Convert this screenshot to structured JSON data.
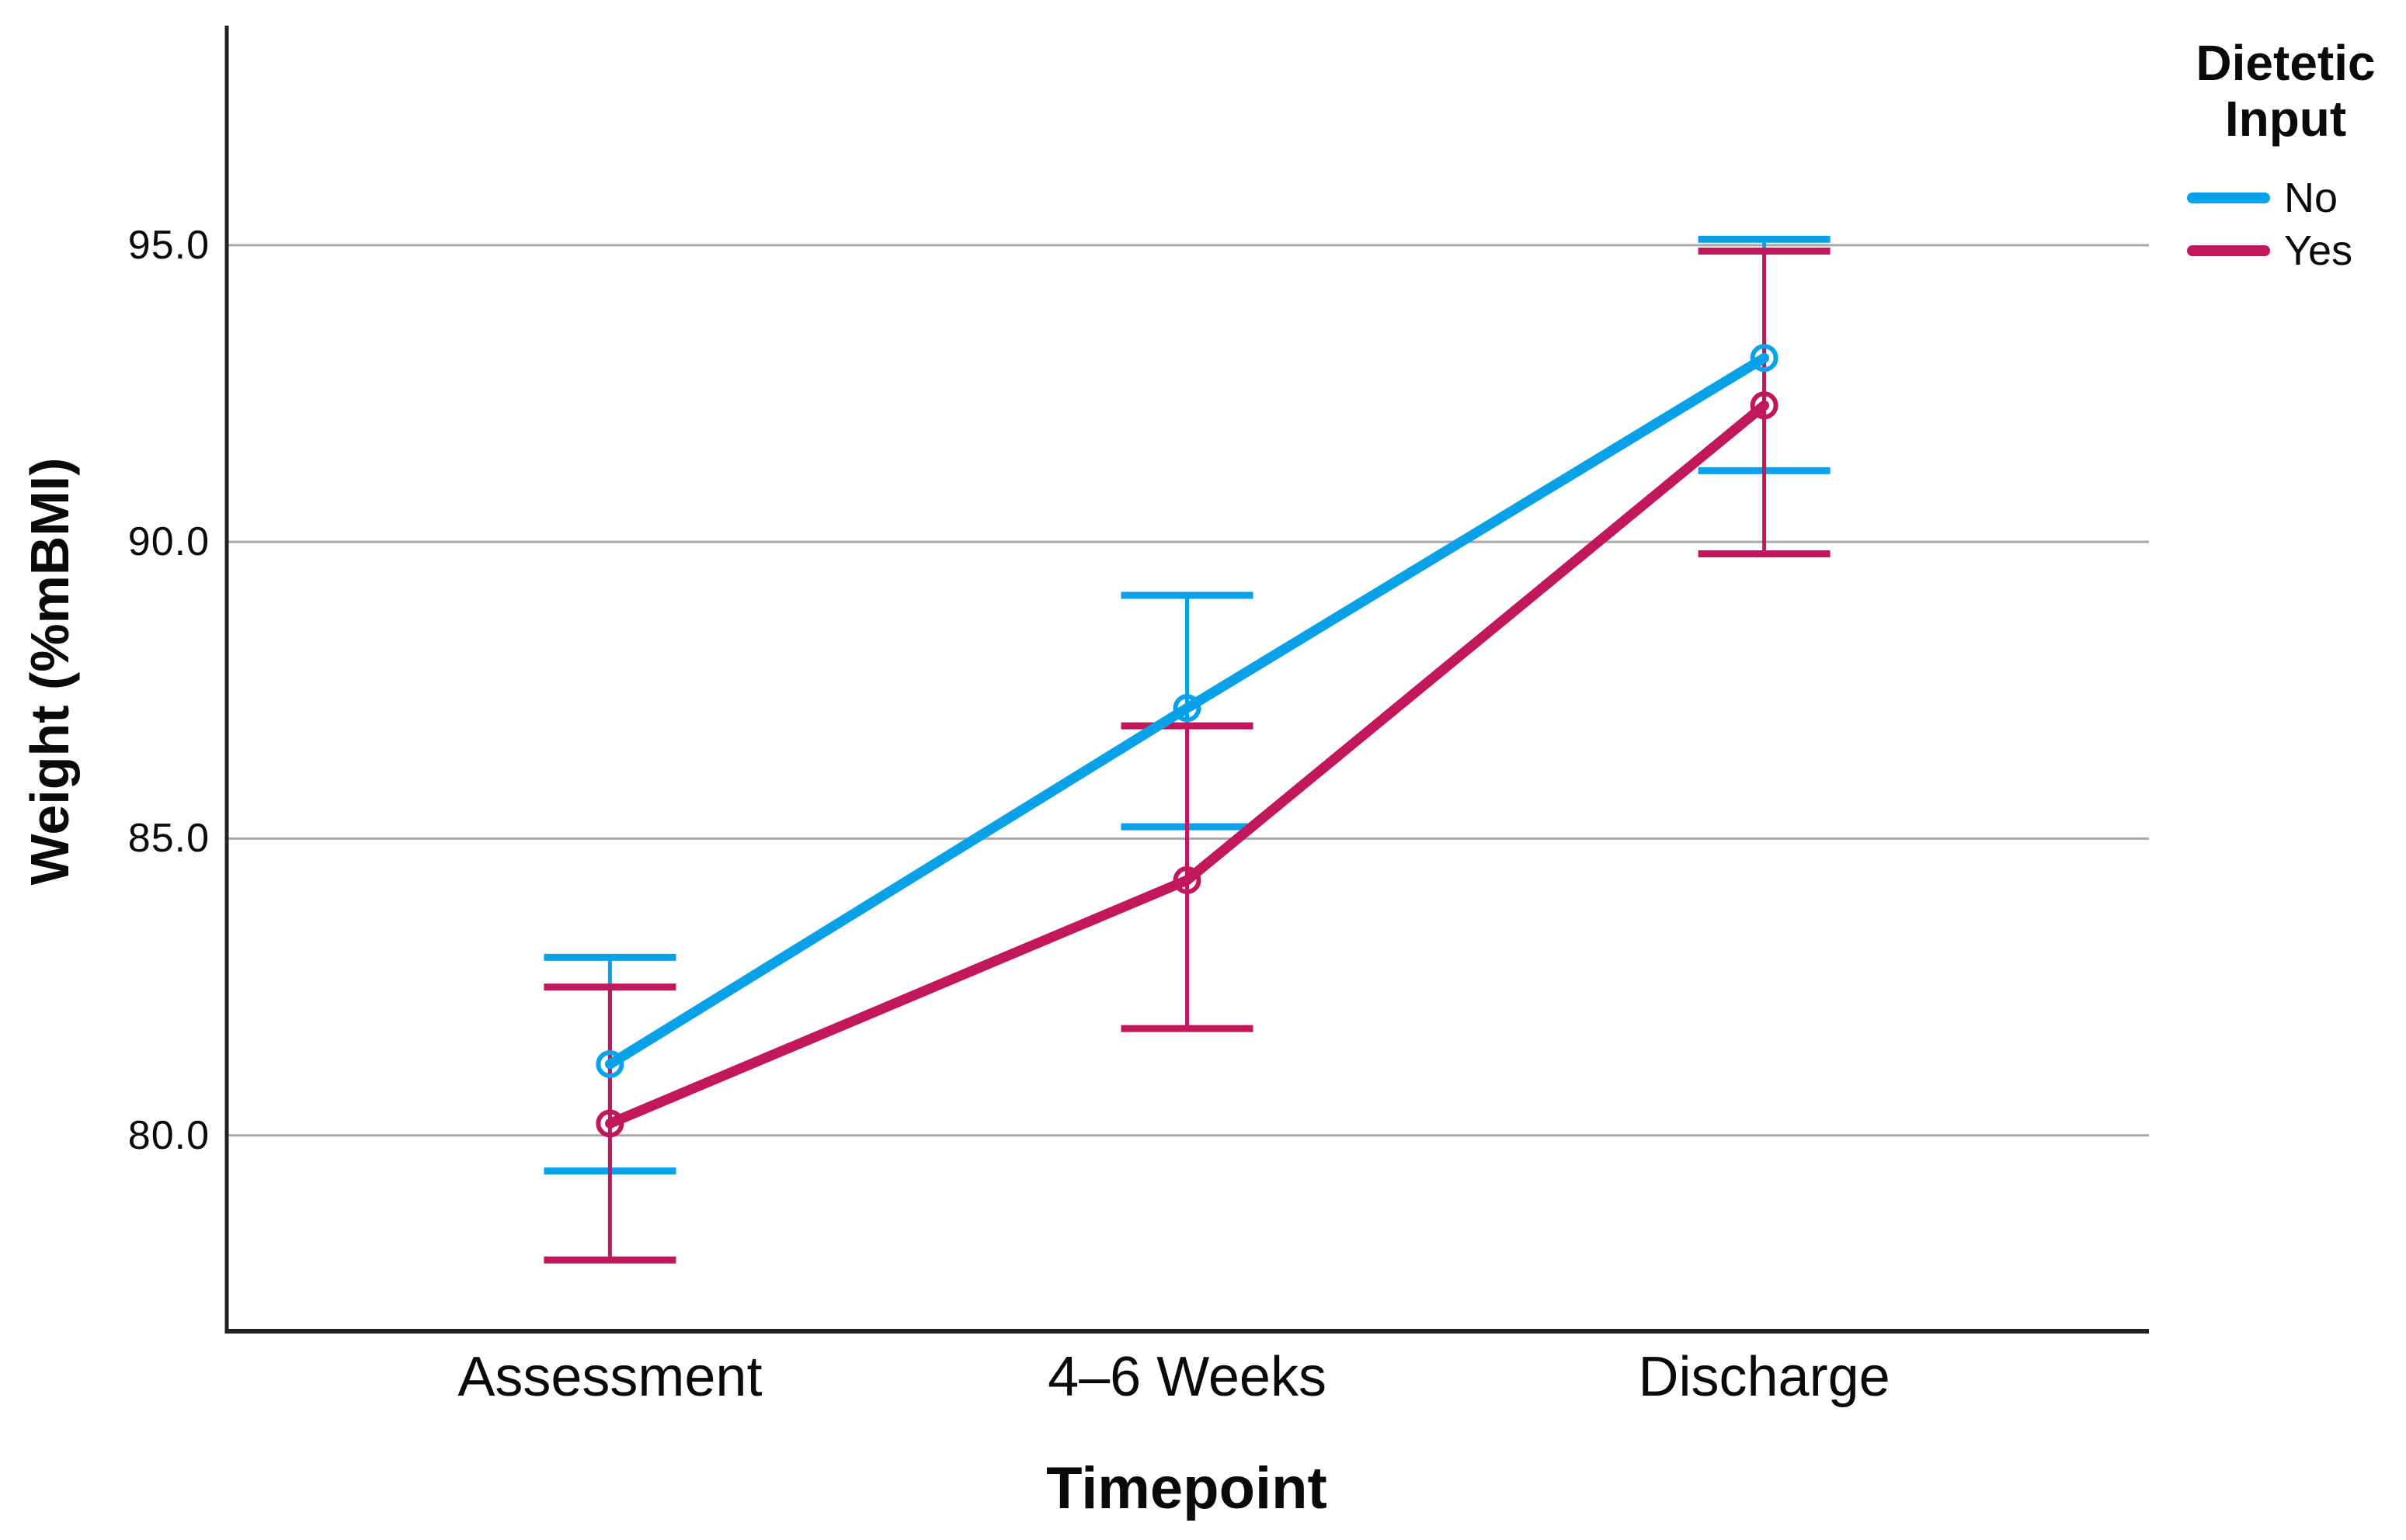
{
  "chart_data": {
    "type": "line",
    "xlabel": "Timepoint",
    "ylabel": "Weight (%mBMI)",
    "categories": [
      "Assessment",
      "4–6 Weeks",
      "Discharge"
    ],
    "y_axis": {
      "ylim": [
        76.7,
        98.7
      ],
      "ticks": [
        {
          "label": "80.0",
          "value": 80
        },
        {
          "label": "85.0",
          "value": 85
        },
        {
          "label": "90.0",
          "value": 90
        },
        {
          "label": "95.0",
          "value": 95
        }
      ]
    },
    "grid": true,
    "legend_title": "Dietetic Input",
    "legend_position": "top-right",
    "marker": "open-circle",
    "error_bars": true,
    "series": [
      {
        "name": "No",
        "color": "#09A2E8",
        "values": [
          81.2,
          87.2,
          93.1
        ],
        "ci_low": [
          79.4,
          85.2,
          91.2
        ],
        "ci_high": [
          83.0,
          89.1,
          95.1
        ]
      },
      {
        "name": "Yes",
        "color": "#C2175B",
        "values": [
          80.2,
          84.3,
          92.3
        ],
        "ci_low": [
          77.9,
          81.8,
          89.8
        ],
        "ci_high": [
          82.5,
          86.9,
          94.9
        ]
      }
    ]
  },
  "colors": {
    "gridline": "#A8A8A8",
    "axis": "#222222",
    "background": "#FFFFFF"
  }
}
